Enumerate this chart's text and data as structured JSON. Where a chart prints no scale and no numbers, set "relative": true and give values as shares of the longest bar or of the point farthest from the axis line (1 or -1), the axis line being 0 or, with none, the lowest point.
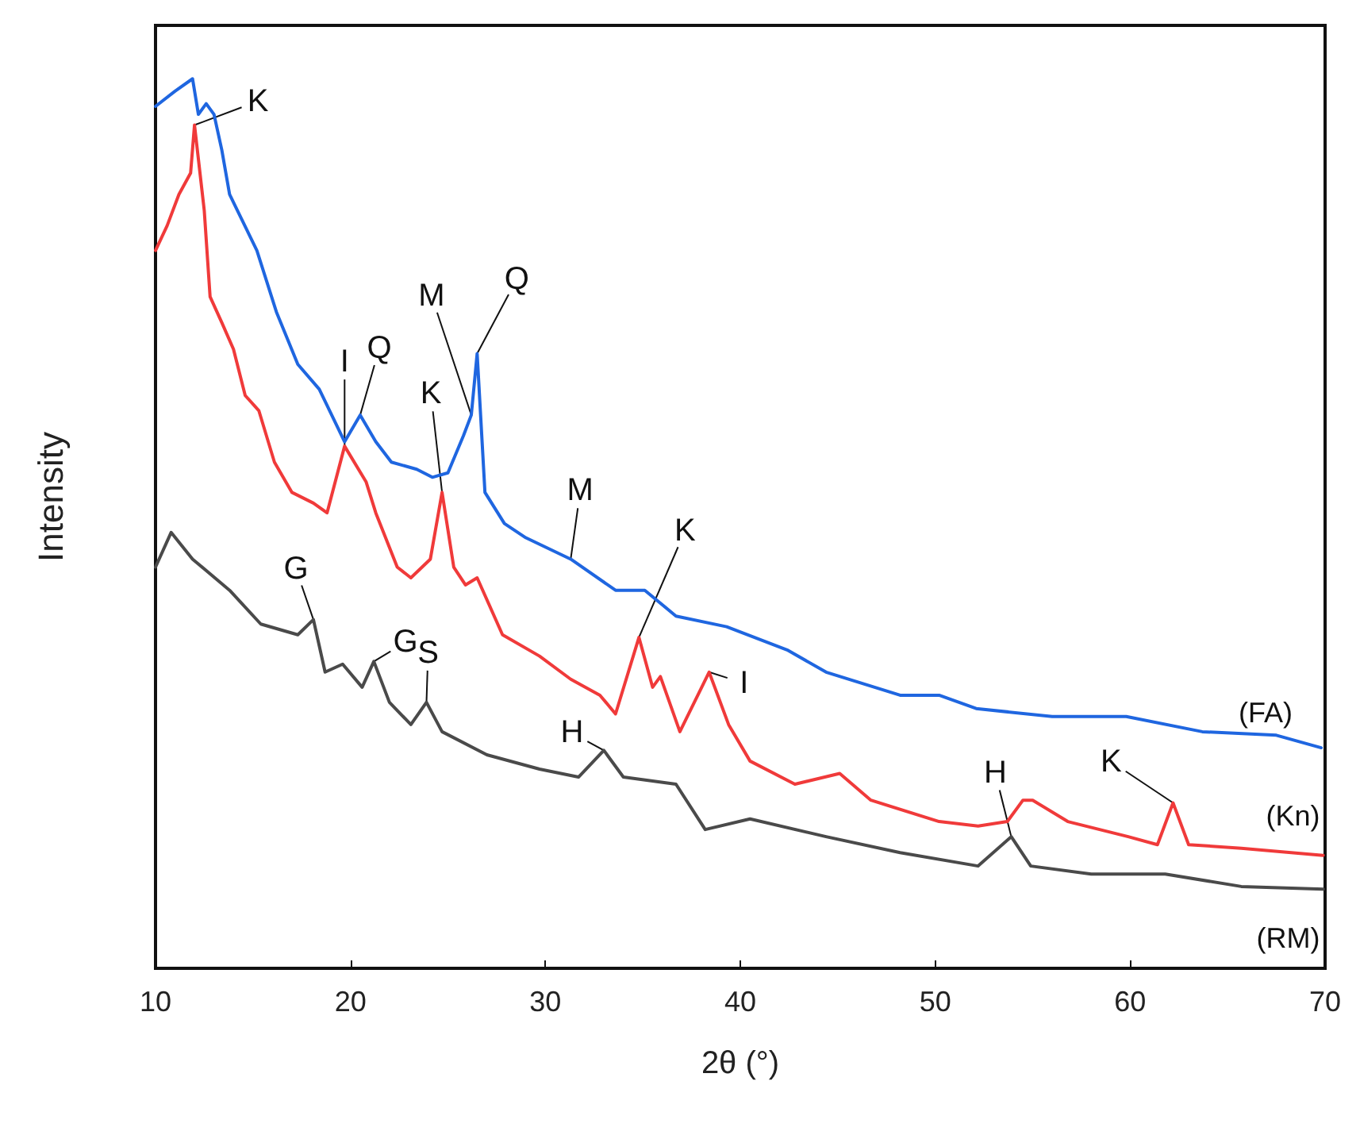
{
  "chart_data": {
    "type": "line",
    "relative": true,
    "xlabel": "2θ (°)",
    "ylabel": "Intensity",
    "xlim": [
      10,
      70
    ],
    "xticks": [
      10,
      20,
      30,
      40,
      50,
      60,
      70
    ],
    "grid": false,
    "legend": false,
    "marker": "none",
    "line_style": "solid",
    "series": [
      {
        "name": "(FA)",
        "color": "#1f66e0",
        "x": [
          10,
          11,
          11.9,
          12.2,
          12.6,
          13,
          13.4,
          13.8,
          15.2,
          16.2,
          17.3,
          18.4,
          19.7,
          20.5,
          21.3,
          22.1,
          23.4,
          24.2,
          25,
          25.8,
          26.2,
          26.5,
          26.9,
          27.9,
          29,
          31.3,
          33.6,
          35.1,
          36.7,
          39.3,
          42.4,
          44.4,
          48.2,
          50.2,
          52.1,
          56,
          59.8,
          63.7,
          67.5,
          69.8
        ],
        "values": [
          0.969,
          0.986,
          1,
          0.96,
          0.972,
          0.96,
          0.92,
          0.87,
          0.807,
          0.738,
          0.679,
          0.651,
          0.592,
          0.622,
          0.592,
          0.569,
          0.561,
          0.552,
          0.557,
          0.599,
          0.622,
          0.691,
          0.535,
          0.5,
          0.484,
          0.46,
          0.425,
          0.425,
          0.396,
          0.384,
          0.358,
          0.333,
          0.307,
          0.307,
          0.292,
          0.283,
          0.283,
          0.266,
          0.262,
          0.248
        ]
      },
      {
        "name": "(Kn)",
        "color": "#f03a3a",
        "x": [
          10,
          10.6,
          11.2,
          11.8,
          12,
          12.5,
          12.8,
          13.4,
          14,
          14.6,
          15.3,
          16.1,
          17,
          18.1,
          18.8,
          19.7,
          20.8,
          21.3,
          22.4,
          23.1,
          24.1,
          24.7,
          25.3,
          25.9,
          26.5,
          27.8,
          29.7,
          31.3,
          32.8,
          33.6,
          34.8,
          35.5,
          35.9,
          36.9,
          38.4,
          39.4,
          40.5,
          42.8,
          45.1,
          46.7,
          50.2,
          52.2,
          53.7,
          54.5,
          55,
          56.8,
          59.9,
          61.4,
          62.2,
          63,
          65.7,
          69.9
        ],
        "values": [
          0.807,
          0.835,
          0.87,
          0.894,
          0.948,
          0.852,
          0.755,
          0.726,
          0.696,
          0.644,
          0.627,
          0.569,
          0.535,
          0.523,
          0.512,
          0.587,
          0.547,
          0.512,
          0.451,
          0.439,
          0.46,
          0.535,
          0.451,
          0.431,
          0.439,
          0.375,
          0.351,
          0.325,
          0.307,
          0.286,
          0.372,
          0.316,
          0.328,
          0.266,
          0.333,
          0.274,
          0.233,
          0.207,
          0.219,
          0.189,
          0.165,
          0.16,
          0.165,
          0.189,
          0.189,
          0.165,
          0.148,
          0.139,
          0.186,
          0.139,
          0.135,
          0.127
        ]
      },
      {
        "name": "(RM)",
        "color": "#4a4a4a",
        "x": [
          10,
          10.8,
          11.9,
          13.8,
          15.4,
          17.3,
          18.1,
          18.7,
          19.6,
          20.6,
          21.2,
          22,
          23.1,
          23.9,
          24.7,
          27,
          29.7,
          31.7,
          33,
          34,
          36.7,
          38.2,
          40.5,
          44.4,
          48.2,
          52.2,
          53.9,
          54.9,
          58,
          61.8,
          65.7,
          69.9
        ],
        "values": [
          0.451,
          0.49,
          0.46,
          0.425,
          0.387,
          0.375,
          0.392,
          0.333,
          0.342,
          0.316,
          0.345,
          0.299,
          0.274,
          0.299,
          0.266,
          0.24,
          0.224,
          0.215,
          0.245,
          0.215,
          0.207,
          0.156,
          0.168,
          0.148,
          0.13,
          0.115,
          0.148,
          0.115,
          0.106,
          0.106,
          0.092,
          0.089
        ]
      }
    ],
    "annotations": [
      {
        "text": "K",
        "x": 12,
        "y": 0.948
      },
      {
        "text": "I",
        "x": 19.7,
        "y": 0.587
      },
      {
        "text": "Q",
        "x": 20.5,
        "y": 0.622
      },
      {
        "text": "K",
        "x": 24.7,
        "y": 0.535
      },
      {
        "text": "M",
        "x": 26.2,
        "y": 0.622
      },
      {
        "text": "Q",
        "x": 26.5,
        "y": 0.691
      },
      {
        "text": "M",
        "x": 31.3,
        "y": 0.46
      },
      {
        "text": "K",
        "x": 34.8,
        "y": 0.372
      },
      {
        "text": "I",
        "x": 38.4,
        "y": 0.333
      },
      {
        "text": "G",
        "x": 18.1,
        "y": 0.392
      },
      {
        "text": "G",
        "x": 21.2,
        "y": 0.345
      },
      {
        "text": "S",
        "x": 23.9,
        "y": 0.299
      },
      {
        "text": "H",
        "x": 33,
        "y": 0.245
      },
      {
        "text": "H",
        "x": 53.9,
        "y": 0.148
      },
      {
        "text": "K",
        "x": 62.2,
        "y": 0.186
      }
    ]
  }
}
